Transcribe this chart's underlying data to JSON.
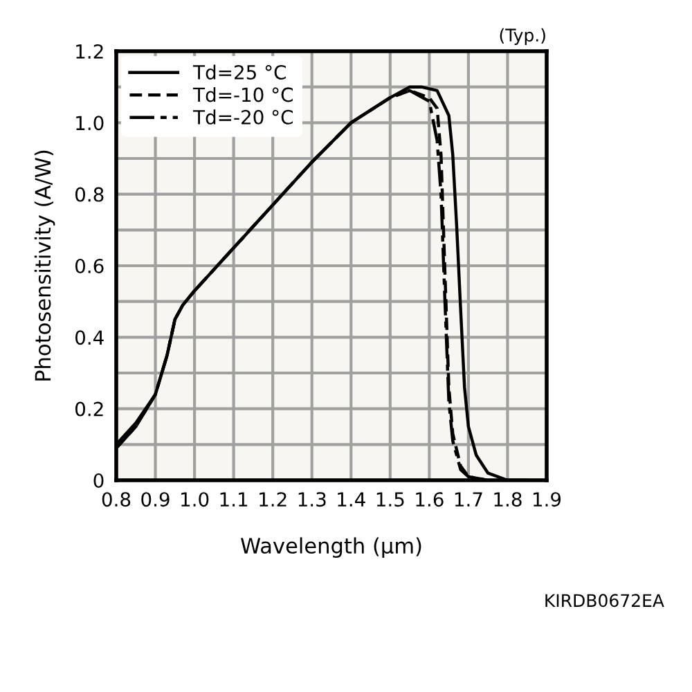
{
  "chart_data": {
    "type": "line",
    "xlabel": "Wavelength (µm)",
    "ylabel": "Photosensitivity (A/W)",
    "annotations": [
      "(Typ.)",
      "KIRDB0672EA"
    ],
    "xlim": [
      0.8,
      1.9
    ],
    "xticks": [
      0.8,
      0.9,
      {
        "value": 1,
        "label": "1.0"
      },
      1.1,
      1.2,
      1.3,
      1.4,
      1.5,
      1.6,
      1.7,
      1.8,
      1.9
    ],
    "ylim": [
      0,
      1.2
    ],
    "yticks": [
      0,
      {
        "value": 0.1,
        "label": null
      },
      0.2,
      {
        "value": 0.3,
        "label": null
      },
      0.4,
      {
        "value": 0.5,
        "label": null
      },
      0.6,
      {
        "value": 0.7,
        "label": null
      },
      0.8,
      {
        "value": 0.9,
        "label": null
      },
      {
        "value": 1,
        "label": "1.0"
      },
      {
        "value": 1.1,
        "label": null
      },
      1.2
    ],
    "grid": true,
    "legend": "top left",
    "marker": "none",
    "series": [
      {
        "name": "Td=25 °C",
        "color": "#000000",
        "line_style": "solid",
        "x": [
          0.8,
          0.85,
          0.9,
          0.93,
          0.95,
          0.97,
          1.0,
          1.1,
          1.2,
          1.3,
          1.4,
          1.5,
          1.55,
          1.58,
          1.62,
          1.65,
          1.66,
          1.67,
          1.68,
          1.69,
          1.7,
          1.72,
          1.75,
          1.8,
          1.85
        ],
        "values": [
          0.1,
          0.16,
          0.24,
          0.35,
          0.45,
          0.49,
          0.53,
          0.65,
          0.77,
          0.89,
          1.0,
          1.07,
          1.1,
          1.1,
          1.09,
          1.02,
          0.91,
          0.71,
          0.48,
          0.26,
          0.15,
          0.07,
          0.02,
          0.0,
          0.0
        ]
      },
      {
        "name": "Td=-10 °C",
        "color": "#000000",
        "line_style": "dashed",
        "x": [
          0.8,
          0.85,
          0.9,
          0.93,
          0.95,
          0.97,
          1.0,
          1.1,
          1.2,
          1.3,
          1.4,
          1.5,
          1.55,
          1.6,
          1.62,
          1.63,
          1.64,
          1.65,
          1.66,
          1.68,
          1.7,
          1.75
        ],
        "values": [
          0.09,
          0.15,
          0.24,
          0.35,
          0.45,
          0.49,
          0.53,
          0.65,
          0.77,
          0.89,
          1.0,
          1.07,
          1.09,
          1.07,
          1.04,
          0.91,
          0.58,
          0.26,
          0.13,
          0.04,
          0.01,
          0.0
        ]
      },
      {
        "name": "Td=-20 °C",
        "color": "#000000",
        "line_style": "dashdot",
        "x": [
          0.8,
          0.85,
          0.9,
          0.93,
          0.95,
          0.97,
          1.0,
          1.1,
          1.2,
          1.3,
          1.4,
          1.5,
          1.55,
          1.6,
          1.62,
          1.63,
          1.64,
          1.65,
          1.66,
          1.68,
          1.7,
          1.75
        ],
        "values": [
          0.09,
          0.15,
          0.24,
          0.35,
          0.45,
          0.49,
          0.53,
          0.65,
          0.77,
          0.89,
          1.0,
          1.07,
          1.09,
          1.06,
          0.95,
          0.8,
          0.5,
          0.22,
          0.11,
          0.03,
          0.01,
          0.0
        ]
      }
    ]
  }
}
